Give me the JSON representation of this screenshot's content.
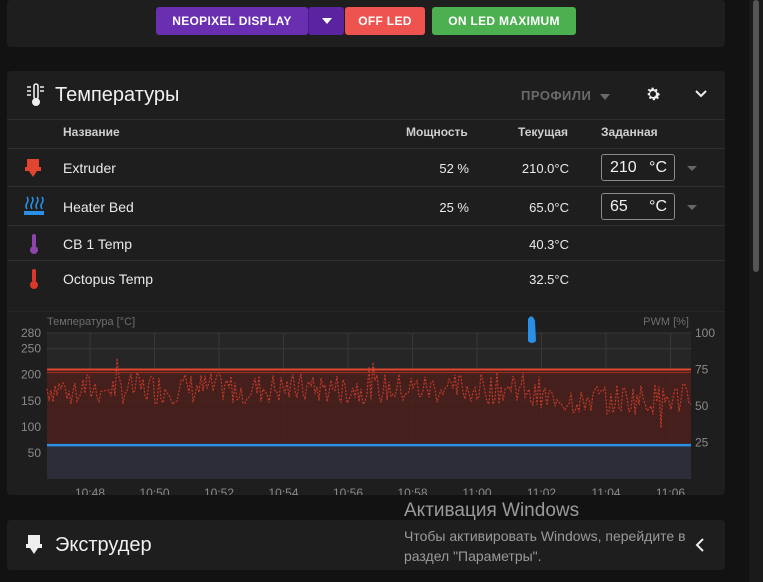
{
  "top_buttons": {
    "neopixel": "NEOPIXEL DISPLAY",
    "off_led": "OFF LED",
    "on_led": "ON LED MAXIMUM"
  },
  "temps": {
    "title": "Температуры",
    "profiles_label": "ПРОФИЛИ",
    "columns": {
      "name": "Название",
      "power": "Мощность",
      "current": "Текущая",
      "target": "Заданная"
    },
    "rows": [
      {
        "name": "Extruder",
        "power": "52 %",
        "current": "210.0°C",
        "target": "210",
        "unit": "°C",
        "icon": "extruder-icon",
        "color": "#e0452f"
      },
      {
        "name": "Heater Bed",
        "power": "25 %",
        "current": "65.0°C",
        "target": "65",
        "unit": "°C",
        "icon": "heater-bed-icon",
        "color": "#2a8fe6"
      },
      {
        "name": "CB 1 Temp",
        "power": "",
        "current": "40.3°C",
        "icon": "thermometer-icon",
        "color": "#8e44ad"
      },
      {
        "name": "Octopus Temp",
        "power": "",
        "current": "32.5°C",
        "icon": "thermometer-icon",
        "color": "#d9382c"
      }
    ]
  },
  "chart_data": {
    "type": "line",
    "ylabel": "Температура [°C]",
    "y2label": "PWM [%]",
    "ylim": [
      0,
      280
    ],
    "y_ticks": [
      50,
      100,
      150,
      200,
      250,
      280
    ],
    "y2lim": [
      0,
      100
    ],
    "y2_ticks": [
      25,
      50,
      75,
      100
    ],
    "x_ticks": [
      "10:48",
      "10:50",
      "10:52",
      "10:54",
      "10:56",
      "10:58",
      "11:00",
      "11:02",
      "11:04",
      "11:06"
    ],
    "grid": true,
    "series": [
      {
        "name": "Extruder",
        "kind": "temperature",
        "color": "#e0452f",
        "value": 210
      },
      {
        "name": "Extruder",
        "kind": "target",
        "color": "#e0452f",
        "value": 210
      },
      {
        "name": "Extruder",
        "kind": "pwm",
        "color": "#c0392b",
        "pwm_range_percent": [
          40,
          80
        ]
      },
      {
        "name": "Heater Bed",
        "kind": "temperature",
        "color": "#2a8fe6",
        "value": 65
      }
    ]
  },
  "extruder_section": {
    "title": "Экструдер"
  },
  "watermark": {
    "title": "Активация Windows",
    "line1": "Чтобы активировать Windows, перейдите в",
    "line2": "раздел \"Параметры\"."
  }
}
